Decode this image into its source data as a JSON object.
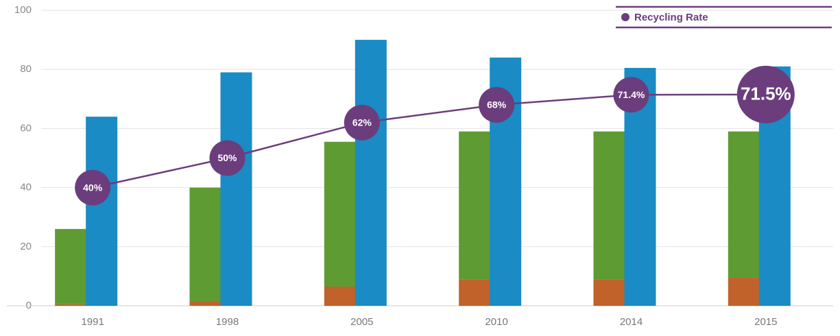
{
  "chart_data": {
    "type": "bar",
    "categories": [
      "1991",
      "1998",
      "2005",
      "2010",
      "2014",
      "2015"
    ],
    "series": [
      {
        "type": "bar",
        "stack": "a",
        "color": "#c0622a",
        "values": [
          0.5,
          1.5,
          6.5,
          9,
          9,
          9.5
        ]
      },
      {
        "type": "bar",
        "stack": "a",
        "color": "#5e9b32",
        "values": [
          25.5,
          38.5,
          49,
          50,
          50,
          49.5
        ]
      },
      {
        "type": "bar",
        "stack": "b",
        "color": "#1a8bc4",
        "values": [
          64,
          79,
          90,
          84,
          80.5,
          81
        ]
      },
      {
        "type": "line",
        "name": "Recycling Rate",
        "color": "#6b3d7d",
        "values": [
          40,
          50,
          62,
          68,
          71.4,
          71.5
        ],
        "value_labels": [
          "40%",
          "50%",
          "62%",
          "68%",
          "71.4%",
          "71.5%"
        ]
      }
    ],
    "ylim": [
      0,
      100
    ],
    "yticks": [
      0,
      20,
      40,
      60,
      80,
      100
    ],
    "grid": true,
    "legend": "top-right"
  }
}
